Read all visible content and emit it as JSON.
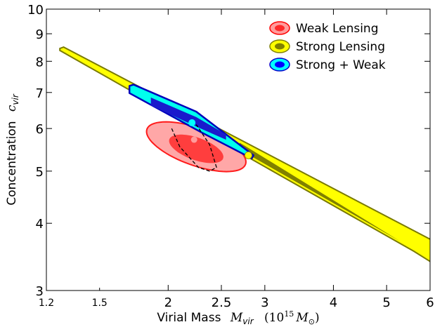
{
  "chart_data": {
    "type": "contour",
    "xlabel": "Virial Mass",
    "xlabel_symbol": "M",
    "xlabel_symbol_sub": "vir",
    "xlabel_unit_open": "(10",
    "xlabel_unit_exp": "15",
    "xlabel_unit_mass": "M",
    "xlabel_unit_sun": "⊙",
    "xlabel_unit_close": ")",
    "ylabel": "Concentration",
    "ylabel_symbol": "c",
    "ylabel_symbol_sub": "vir",
    "x_scale": "log",
    "y_scale": "log",
    "xlim": [
      1.2,
      6
    ],
    "ylim": [
      3,
      10
    ],
    "x_major_ticks": [
      {
        "value": 2,
        "label": "2"
      },
      {
        "value": 2.5,
        "label": "2.5"
      },
      {
        "value": 3,
        "label": "3"
      },
      {
        "value": 4,
        "label": "4"
      },
      {
        "value": 5,
        "label": "5"
      },
      {
        "value": 6,
        "label": "6"
      }
    ],
    "x_minor_ticks": [
      {
        "value": 1.2,
        "label": "1.2"
      },
      {
        "value": 1.5,
        "label": "1.5"
      }
    ],
    "y_major_ticks": [
      {
        "value": 3,
        "label": "3"
      },
      {
        "value": 4,
        "label": "4"
      },
      {
        "value": 5,
        "label": "5"
      },
      {
        "value": 6,
        "label": "6"
      },
      {
        "value": 7,
        "label": "7"
      },
      {
        "value": 8,
        "label": "8"
      },
      {
        "value": 9,
        "label": "9"
      },
      {
        "value": 10,
        "label": "10"
      }
    ],
    "legend": {
      "position": "top-right",
      "entries": [
        {
          "label": "Weak Lensing",
          "outer": "#ff9c9c",
          "inner": "#ff2a2a",
          "edge": "#ff0000"
        },
        {
          "label": "Strong Lensing",
          "outer": "#ffff00",
          "inner": "#808000",
          "edge": "#808000"
        },
        {
          "label": "Strong + Weak",
          "outer": "#00ffff",
          "inner": "#0000ff",
          "edge": "#0000cc"
        }
      ]
    },
    "series": [
      {
        "name": "Weak Lensing",
        "kind": "contours",
        "colors": {
          "outer": "#ff9898",
          "inner": "#ff3333",
          "edge": "#ff1a1a"
        },
        "contours": [
          {
            "level": "outer",
            "center": [
              2.25,
              5.55
            ],
            "a": 0.22,
            "b": 0.08,
            "angle": -0.35
          },
          {
            "level": "inner",
            "center": [
              2.25,
              5.5
            ],
            "a": 0.12,
            "b": 0.048,
            "angle": -0.35
          }
        ],
        "best_fit": {
          "x": 2.23,
          "y": 5.72
        }
      },
      {
        "name": "Strong Lensing",
        "kind": "band",
        "colors": {
          "outer": "#ffff00",
          "inner": "#808000",
          "edge": "#7a7a00"
        },
        "outer_polygon": [
          [
            1.27,
            8.45
          ],
          [
            1.29,
            8.5
          ],
          [
            6.05,
            3.72
          ],
          [
            6.05,
            3.38
          ],
          [
            5.6,
            3.55
          ],
          [
            1.27,
            8.38
          ]
        ],
        "inner_polygon": [
          [
            2.7,
            5.65
          ],
          [
            5.3,
            3.7
          ],
          [
            2.7,
            5.48
          ]
        ]
      },
      {
        "name": "Strong + Weak",
        "kind": "contours",
        "colors": {
          "outer": "#00ffee",
          "inner": "#1a1acc",
          "edge": "#0000bb"
        },
        "outer_polygon": [
          [
            1.7,
            7.2
          ],
          [
            1.73,
            7.24
          ],
          [
            2.25,
            6.45
          ],
          [
            2.86,
            5.35
          ],
          [
            2.84,
            5.28
          ],
          [
            2.3,
            5.9
          ],
          [
            1.7,
            6.98
          ]
        ],
        "inner_polygon": [
          [
            1.86,
            6.85
          ],
          [
            2.25,
            6.3
          ],
          [
            2.55,
            5.85
          ],
          [
            2.55,
            5.72
          ],
          [
            2.25,
            6.05
          ],
          [
            1.86,
            6.62
          ]
        ],
        "best_fit": {
          "x": 2.21,
          "y": 6.15
        }
      }
    ],
    "annotations": [
      {
        "kind": "dashed",
        "color": "#000000",
        "points": [
          [
            2.03,
            6.0
          ],
          [
            2.1,
            5.55
          ],
          [
            2.27,
            5.08
          ],
          [
            2.38,
            5.0
          ],
          [
            2.45,
            5.08
          ],
          [
            2.38,
            5.6
          ],
          [
            2.25,
            6.1
          ]
        ]
      },
      {
        "kind": "point",
        "x": 2.8,
        "y": 5.35,
        "color": "#ffff00",
        "edge": "#999900"
      }
    ]
  }
}
